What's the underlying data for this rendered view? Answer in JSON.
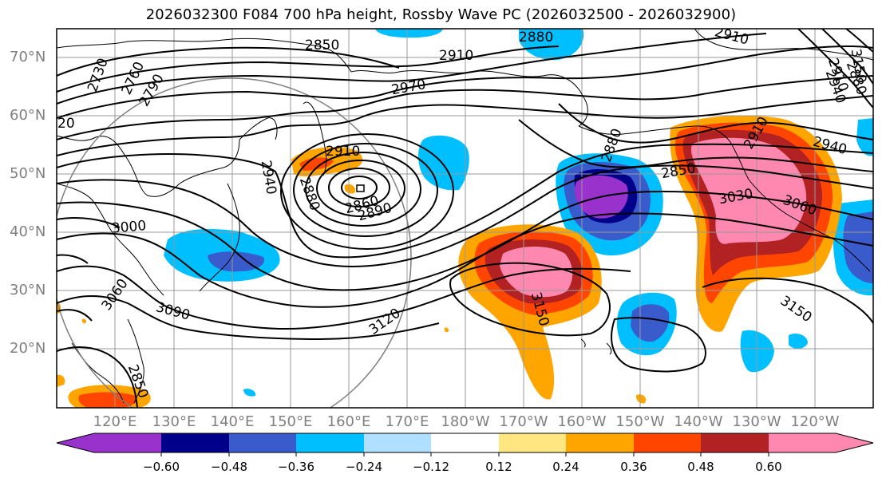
{
  "title": "2026032300 F084 700 hPa height, Rossby Wave PC (2026032500 - 2026032900)",
  "lat_labels": [
    "70°N",
    "60°N",
    "50°N",
    "40°N",
    "30°N",
    "20°N"
  ],
  "lon_labels": [
    "120°E",
    "130°E",
    "140°E",
    "150°E",
    "160°E",
    "170°E",
    "180°W",
    "170°W",
    "160°W",
    "150°W",
    "140°W",
    "130°W",
    "120°W"
  ],
  "contour_labels": [
    "2730",
    "2760",
    "2790",
    "2850",
    "2880",
    "2910",
    "2910",
    "2970",
    "2910",
    "2850",
    "2880",
    "2940",
    "2910",
    "2880",
    "2940",
    "2860",
    "2890",
    "3000",
    "3060",
    "3090",
    "3120",
    "3150",
    "3150",
    "2880",
    "2850",
    "3030",
    "3060",
    "2910",
    "2940",
    "3150",
    "20"
  ],
  "colorbar": {
    "ticks": [
      "−0.60",
      "−0.48",
      "−0.36",
      "−0.24",
      "−0.12",
      "0.12",
      "0.24",
      "0.36",
      "0.48",
      "0.60"
    ],
    "colors": [
      "#9932cc",
      "#00008b",
      "#3a5bcc",
      "#00bfff",
      "#b0e0ff",
      "#ffffff",
      "#ffe680",
      "#ffa500",
      "#ff4500",
      "#b22222",
      "#ff88b0"
    ]
  }
}
